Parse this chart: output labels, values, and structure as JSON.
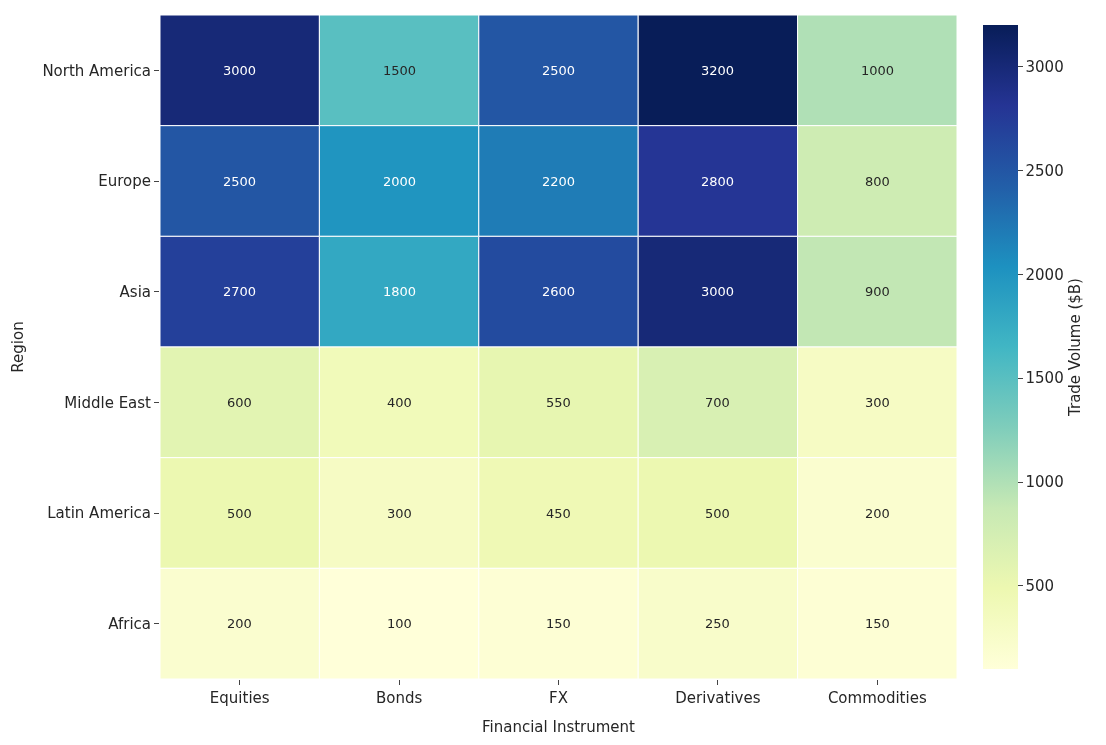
{
  "chart_data": {
    "type": "heatmap",
    "xlabel": "Financial Instrument",
    "ylabel": "Region",
    "clabel": "Trade Volume ($B)",
    "categories": [
      "Equities",
      "Bonds",
      "FX",
      "Derivatives",
      "Commodities"
    ],
    "y_categories": [
      "North America",
      "Europe",
      "Asia",
      "Middle East",
      "Latin America",
      "Africa"
    ],
    "cells": [
      [
        3000,
        1500,
        2500,
        3200,
        1000
      ],
      [
        2500,
        2000,
        2200,
        2800,
        800
      ],
      [
        2700,
        1800,
        2600,
        3000,
        900
      ],
      [
        600,
        400,
        550,
        700,
        300
      ],
      [
        500,
        300,
        450,
        500,
        200
      ],
      [
        200,
        100,
        150,
        250,
        150
      ]
    ],
    "clim": [
      100,
      3200
    ],
    "cticks": [
      500,
      1000,
      1500,
      2000,
      2500,
      3000
    ],
    "data_labels": true
  }
}
